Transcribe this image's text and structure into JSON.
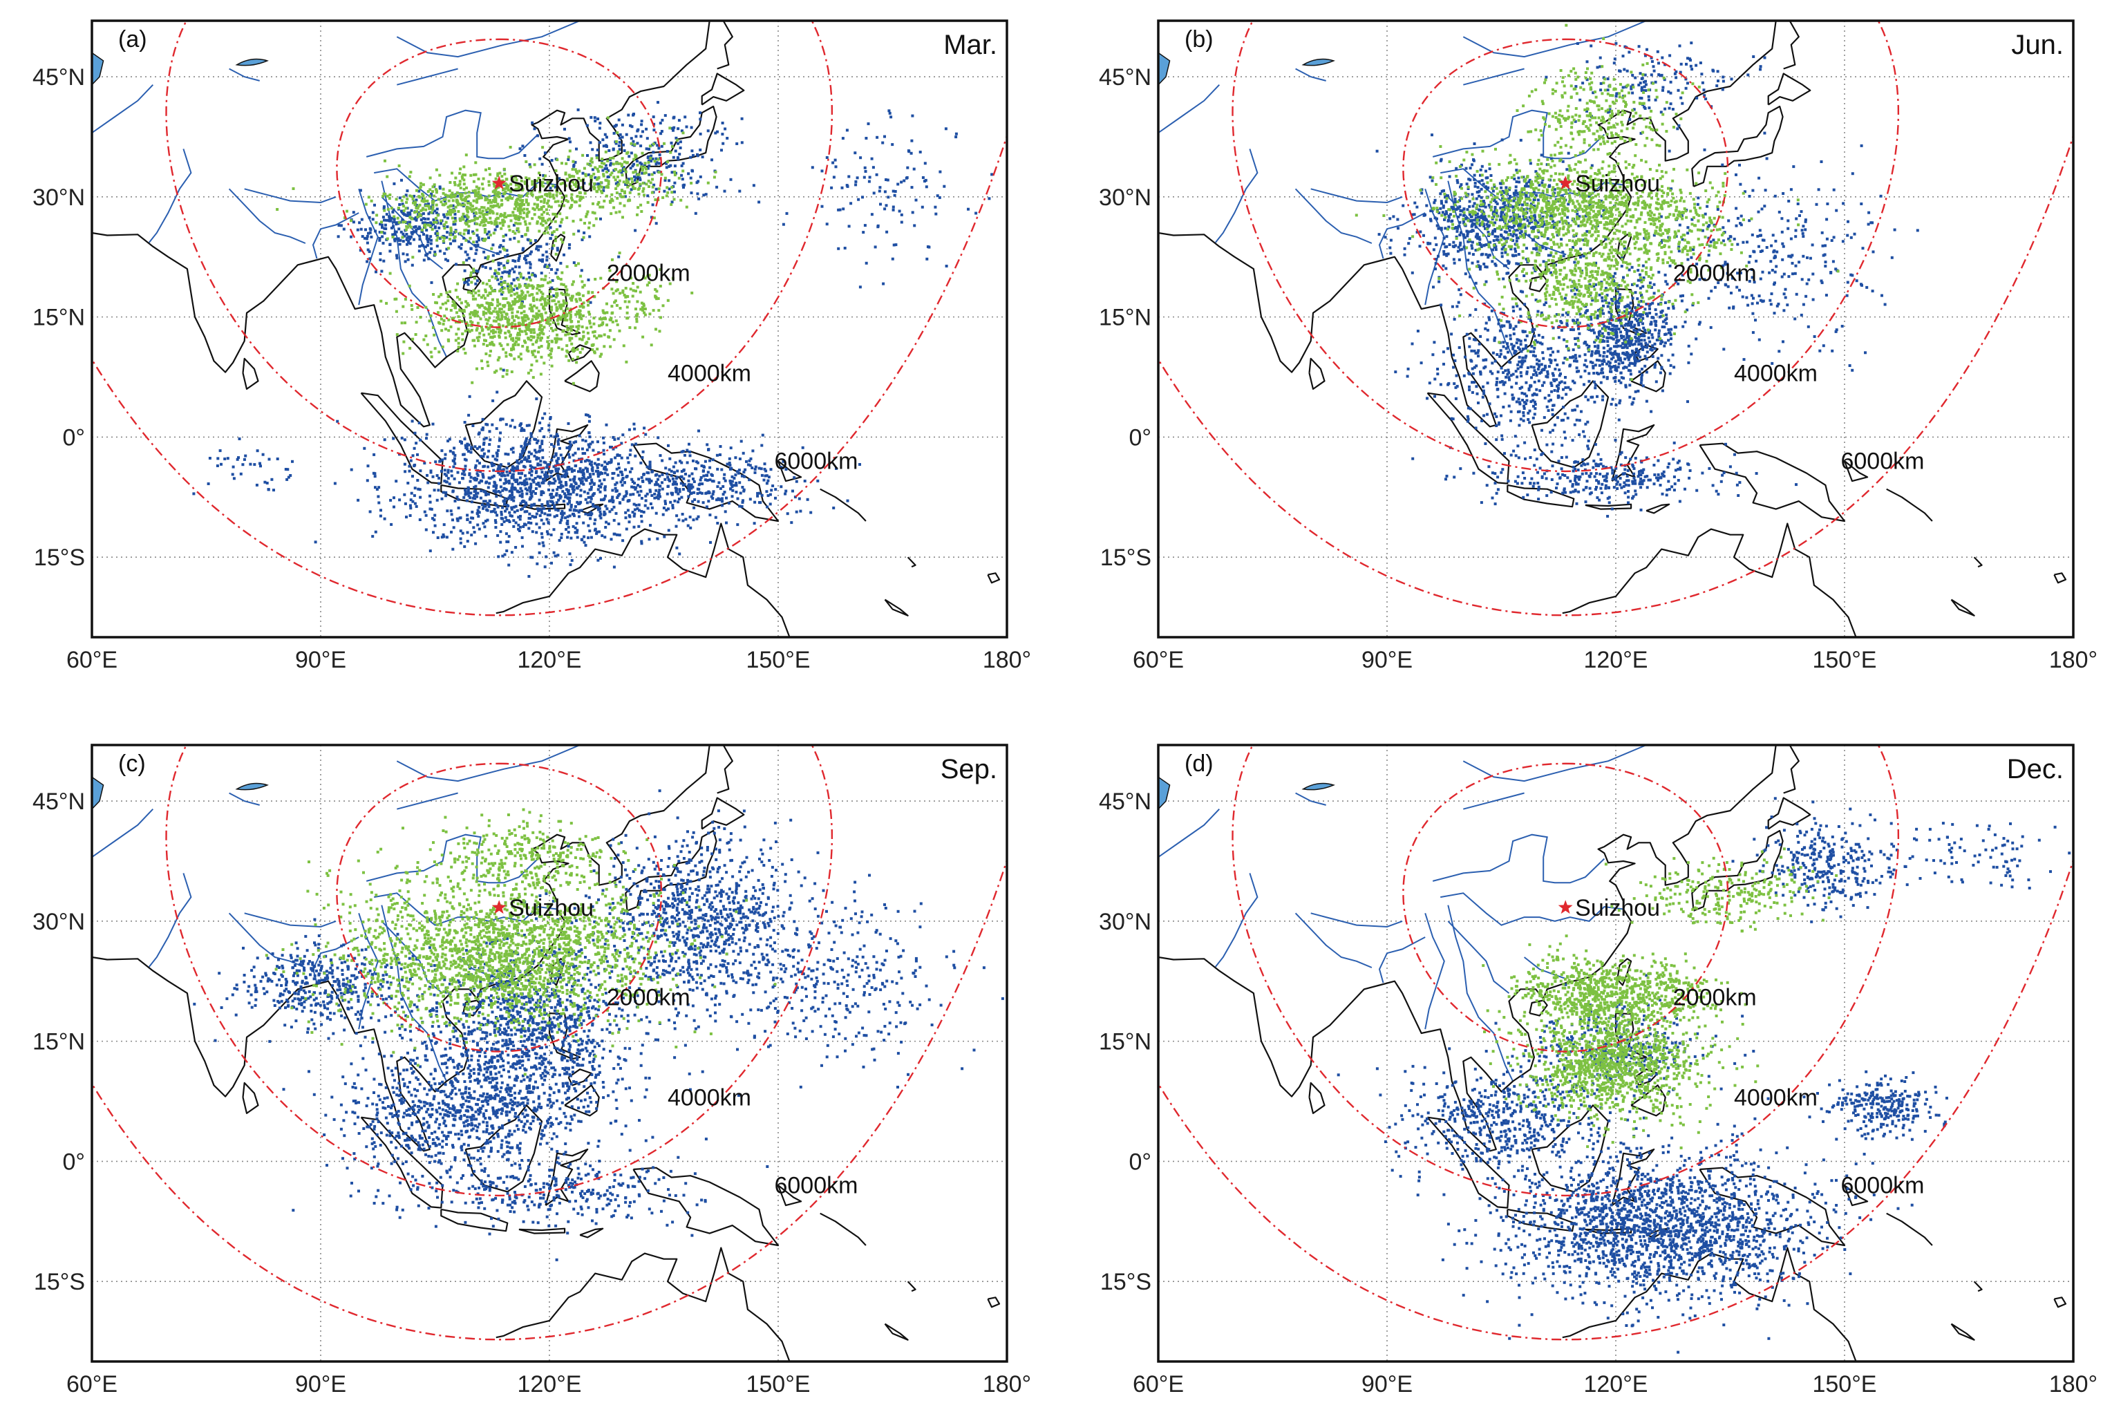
{
  "figure": {
    "panels": [
      {
        "id": "a",
        "tag": "(a)",
        "month": "Mar.",
        "station": "Suizhou",
        "green_regions": [
          {
            "lon": 112,
            "lat": 29,
            "rlon": 13,
            "rlat": 4,
            "n": 700
          },
          {
            "lon": 128,
            "lat": 32,
            "rlon": 9,
            "rlat": 4,
            "n": 260
          },
          {
            "lon": 117,
            "lat": 15,
            "rlon": 12,
            "rlat": 5,
            "n": 900
          },
          {
            "lon": 132,
            "lat": 17,
            "rlon": 4,
            "rlat": 3,
            "n": 60
          }
        ],
        "blue_regions": [
          {
            "lon": 118,
            "lat": -6,
            "rlon": 16,
            "rlat": 7,
            "n": 1300
          },
          {
            "lon": 140,
            "lat": -6,
            "rlon": 12,
            "rlat": 4,
            "n": 350
          },
          {
            "lon": 132,
            "lat": 35,
            "rlon": 12,
            "rlat": 6,
            "n": 280
          },
          {
            "lon": 103,
            "lat": 26,
            "rlon": 8,
            "rlat": 4,
            "n": 320
          },
          {
            "lon": 116,
            "lat": 22,
            "rlon": 8,
            "rlat": 4,
            "n": 160
          },
          {
            "lon": 165,
            "lat": 31,
            "rlon": 10,
            "rlat": 8,
            "n": 120
          },
          {
            "lon": 80,
            "lat": -4,
            "rlon": 6,
            "rlat": 3,
            "n": 40
          }
        ]
      },
      {
        "id": "b",
        "tag": "(b)",
        "month": "Jun.",
        "station": "Suizhou",
        "green_regions": [
          {
            "lon": 114,
            "lat": 29,
            "rlon": 14,
            "rlat": 5,
            "n": 900
          },
          {
            "lon": 118,
            "lat": 40,
            "rlon": 8,
            "rlat": 6,
            "n": 300
          },
          {
            "lon": 116,
            "lat": 20,
            "rlon": 10,
            "rlat": 7,
            "n": 600
          },
          {
            "lon": 128,
            "lat": 26,
            "rlon": 8,
            "rlat": 5,
            "n": 200
          }
        ],
        "blue_regions": [
          {
            "lon": 104,
            "lat": 27,
            "rlon": 10,
            "rlat": 6,
            "n": 700
          },
          {
            "lon": 121,
            "lat": 13,
            "rlon": 6,
            "rlat": 6,
            "n": 600
          },
          {
            "lon": 108,
            "lat": 8,
            "rlon": 10,
            "rlat": 8,
            "n": 500
          },
          {
            "lon": 140,
            "lat": 22,
            "rlon": 14,
            "rlat": 10,
            "n": 300
          },
          {
            "lon": 118,
            "lat": -5,
            "rlon": 14,
            "rlat": 3,
            "n": 300
          },
          {
            "lon": 125,
            "lat": 44,
            "rlon": 10,
            "rlat": 5,
            "n": 150
          }
        ]
      },
      {
        "id": "c",
        "tag": "(c)",
        "month": "Sep.",
        "station": "Suizhou",
        "green_regions": [
          {
            "lon": 114,
            "lat": 26,
            "rlon": 18,
            "rlat": 8,
            "n": 2000
          },
          {
            "lon": 117,
            "lat": 38,
            "rlon": 12,
            "rlat": 4,
            "n": 300
          }
        ],
        "blue_regions": [
          {
            "lon": 118,
            "lat": 16,
            "rlon": 12,
            "rlat": 10,
            "n": 1100
          },
          {
            "lon": 140,
            "lat": 30,
            "rlon": 12,
            "rlat": 10,
            "n": 900
          },
          {
            "lon": 108,
            "lat": 6,
            "rlon": 14,
            "rlat": 8,
            "n": 800
          },
          {
            "lon": 90,
            "lat": 22,
            "rlon": 10,
            "rlat": 5,
            "n": 400
          },
          {
            "lon": 158,
            "lat": 22,
            "rlon": 12,
            "rlat": 10,
            "n": 300
          },
          {
            "lon": 120,
            "lat": -4,
            "rlon": 16,
            "rlat": 4,
            "n": 300
          }
        ]
      },
      {
        "id": "d",
        "tag": "(d)",
        "month": "Dec.",
        "station": "Suizhou",
        "green_regions": [
          {
            "lon": 120,
            "lat": 12,
            "rlon": 10,
            "rlat": 6,
            "n": 1100
          },
          {
            "lon": 118,
            "lat": 21,
            "rlon": 10,
            "rlat": 4,
            "n": 700
          },
          {
            "lon": 135,
            "lat": 34,
            "rlon": 10,
            "rlat": 4,
            "n": 250
          },
          {
            "lon": 128,
            "lat": 21,
            "rlon": 5,
            "rlat": 3,
            "n": 100
          }
        ],
        "blue_regions": [
          {
            "lon": 126,
            "lat": -8,
            "rlon": 18,
            "rlat": 8,
            "n": 1800
          },
          {
            "lon": 105,
            "lat": 5,
            "rlon": 12,
            "rlat": 6,
            "n": 500
          },
          {
            "lon": 148,
            "lat": 37,
            "rlon": 8,
            "rlat": 5,
            "n": 300
          },
          {
            "lon": 155,
            "lat": 7,
            "rlon": 7,
            "rlat": 3,
            "n": 250
          },
          {
            "lon": 168,
            "lat": 38,
            "rlon": 10,
            "rlat": 4,
            "n": 80
          },
          {
            "lon": 120,
            "lat": 14,
            "rlon": 10,
            "rlat": 5,
            "n": 300
          }
        ]
      }
    ],
    "station_location": {
      "lon": 113.4,
      "lat": 31.7
    },
    "extent": {
      "lon": [
        60,
        180
      ],
      "lat": [
        -25,
        52
      ]
    },
    "lon_ticks": [
      {
        "value": 60,
        "label": "60°E"
      },
      {
        "value": 90,
        "label": "90°E"
      },
      {
        "value": 120,
        "label": "120°E"
      },
      {
        "value": 150,
        "label": "150°E"
      },
      {
        "value": 180,
        "label": "180°"
      }
    ],
    "lat_ticks": [
      {
        "value": 45,
        "label": "45°N"
      },
      {
        "value": 30,
        "label": "30°N"
      },
      {
        "value": 15,
        "label": "15°N"
      },
      {
        "value": 0,
        "label": "0°"
      },
      {
        "value": -15,
        "label": "15°S"
      }
    ],
    "distance_rings": [
      {
        "km": 2000,
        "label": "2000km"
      },
      {
        "km": 4000,
        "label": "4000km"
      },
      {
        "km": 6000,
        "label": "6000km"
      }
    ],
    "colors": {
      "green_points": "#7dc142",
      "blue_points": "#1f4fa3",
      "rings": "#e0282e",
      "station": "#e0282e",
      "coast": "#111111",
      "rivers": "#2b5fb0",
      "grid": "#888888",
      "frame": "#111111",
      "lake": "#5aa0d8"
    }
  }
}
